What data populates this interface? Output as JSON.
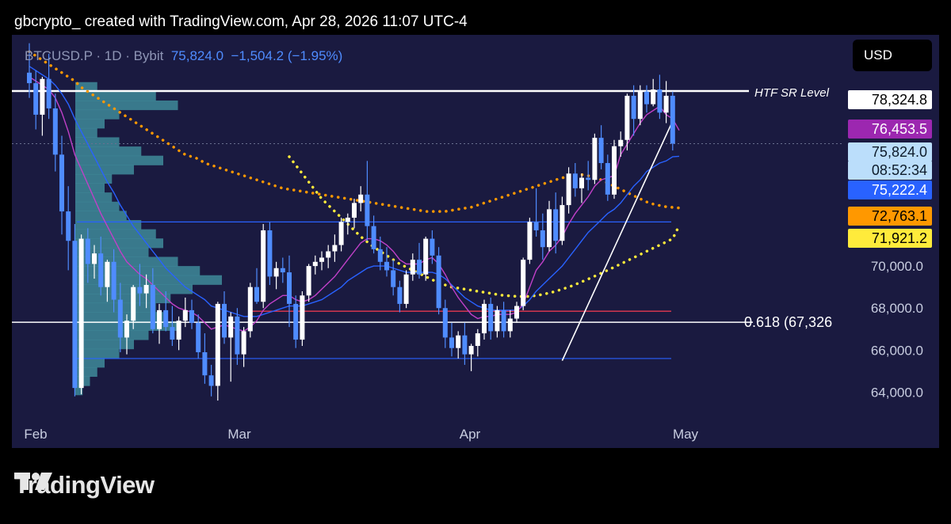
{
  "header": "gbcrypto_ created with TradingView.com, Apr 28, 2026 11:07 UTC-4",
  "symbol": {
    "ticker": "BTCUSD.P · 1D · Bybit",
    "last": "75,824.0",
    "change": "−1,504.2 (−1.95%)"
  },
  "currency": "USD",
  "brand": "TradingView",
  "annotations": {
    "htf": "HTF SR Level",
    "fib": "0.618 (67,326"
  },
  "price_tags": [
    {
      "label": "78,324.8",
      "bg": "#ffffff",
      "fg": "#000000"
    },
    {
      "label": "76,453.5",
      "bg": "#9c27b0",
      "fg": "#ffffff"
    },
    {
      "label": "75,824.0",
      "bg": "#bbdefb",
      "fg": "#0d1b2a"
    },
    {
      "label": "08:52:34",
      "bg": "#bbdefb",
      "fg": "#0d1b2a"
    },
    {
      "label": "75,222.4",
      "bg": "#2962ff",
      "fg": "#ffffff"
    },
    {
      "label": "72,763.1",
      "bg": "#ff9800",
      "fg": "#000000"
    },
    {
      "label": "71,921.2",
      "bg": "#ffeb3b",
      "fg": "#000000"
    }
  ],
  "chart_data": {
    "type": "candlestick",
    "x_labels": [
      "Feb",
      "Mar",
      "Apr",
      "May"
    ],
    "y_ticks": [
      "70,000.0",
      "68,000.0",
      "66,000.0",
      "64,000.0"
    ],
    "ylim": [
      63000,
      81000
    ],
    "colors": {
      "up": "#ffffff",
      "down": "#4f8cff"
    },
    "candles": [
      [
        79200,
        80600,
        78000,
        78700
      ],
      [
        78700,
        79300,
        76500,
        77200
      ],
      [
        77200,
        79000,
        76200,
        78900
      ],
      [
        78900,
        80100,
        77000,
        77500
      ],
      [
        77500,
        78200,
        74500,
        75300
      ],
      [
        75300,
        76200,
        71500,
        72600
      ],
      [
        72600,
        73800,
        69800,
        71200
      ],
      [
        71200,
        72000,
        63800,
        64200
      ],
      [
        64200,
        71500,
        63900,
        71300
      ],
      [
        71300,
        71800,
        69200,
        70100
      ],
      [
        70100,
        71000,
        69400,
        70600
      ],
      [
        70600,
        71400,
        68600,
        69000
      ],
      [
        69000,
        70300,
        68300,
        70200
      ],
      [
        70200,
        70800,
        67800,
        68400
      ],
      [
        68400,
        69200,
        65900,
        66600
      ],
      [
        66600,
        67700,
        65800,
        67400
      ],
      [
        67400,
        69100,
        67000,
        69000
      ],
      [
        69000,
        70100,
        68100,
        68700
      ],
      [
        68700,
        69600,
        68000,
        69100
      ],
      [
        69100,
        69900,
        66800,
        67000
      ],
      [
        67000,
        68200,
        66300,
        67900
      ],
      [
        67900,
        68800,
        66900,
        67100
      ],
      [
        67100,
        68100,
        66200,
        66500
      ],
      [
        66500,
        67600,
        66000,
        67400
      ],
      [
        67400,
        68500,
        67100,
        67900
      ],
      [
        67900,
        68400,
        67000,
        67300
      ],
      [
        67300,
        67700,
        65600,
        65900
      ],
      [
        65900,
        66800,
        64400,
        64800
      ],
      [
        64800,
        65300,
        63800,
        64300
      ],
      [
        64300,
        68300,
        63600,
        68200
      ],
      [
        68200,
        68800,
        66300,
        66600
      ],
      [
        66600,
        67800,
        64500,
        67600
      ],
      [
        67600,
        68000,
        65300,
        65800
      ],
      [
        65800,
        67100,
        65200,
        66900
      ],
      [
        66900,
        69200,
        66600,
        69000
      ],
      [
        69000,
        69900,
        68200,
        68300
      ],
      [
        68300,
        72000,
        68000,
        71700
      ],
      [
        71700,
        72100,
        69100,
        69500
      ],
      [
        69500,
        70200,
        68900,
        69900
      ],
      [
        69900,
        70400,
        69200,
        69700
      ],
      [
        69700,
        70500,
        67100,
        68200
      ],
      [
        68200,
        68600,
        66100,
        66500
      ],
      [
        66500,
        68800,
        66200,
        68600
      ],
      [
        68600,
        70100,
        68300,
        70000
      ],
      [
        70000,
        70500,
        69600,
        70200
      ],
      [
        70200,
        70700,
        69800,
        70400
      ],
      [
        70400,
        71000,
        69900,
        70700
      ],
      [
        70700,
        71500,
        70200,
        71000
      ],
      [
        71000,
        72300,
        70700,
        72100
      ],
      [
        72100,
        72500,
        71500,
        72300
      ],
      [
        72300,
        73200,
        71800,
        73000
      ],
      [
        73000,
        73800,
        72600,
        73400
      ],
      [
        73400,
        75000,
        71200,
        71900
      ],
      [
        71900,
        72400,
        70600,
        70800
      ],
      [
        70800,
        71400,
        69800,
        70200
      ],
      [
        70200,
        70900,
        69500,
        69800
      ],
      [
        69800,
        70300,
        68600,
        69000
      ],
      [
        69000,
        69300,
        67800,
        68200
      ],
      [
        68200,
        69800,
        68000,
        69600
      ],
      [
        69600,
        70600,
        69300,
        70300
      ],
      [
        70300,
        71100,
        69400,
        69600
      ],
      [
        69600,
        71400,
        69300,
        71300
      ],
      [
        71300,
        71700,
        70100,
        70500
      ],
      [
        70500,
        70900,
        67700,
        68000
      ],
      [
        68000,
        68400,
        66100,
        66600
      ],
      [
        66600,
        67300,
        65700,
        66100
      ],
      [
        66100,
        66900,
        65600,
        66700
      ],
      [
        66700,
        67300,
        65300,
        65800
      ],
      [
        65800,
        66300,
        65000,
        66200
      ],
      [
        66200,
        67000,
        65700,
        66800
      ],
      [
        66800,
        68400,
        66500,
        68200
      ],
      [
        68200,
        68500,
        66500,
        66900
      ],
      [
        66900,
        68100,
        66600,
        67900
      ],
      [
        67900,
        68300,
        66600,
        66900
      ],
      [
        66900,
        67900,
        66600,
        67500
      ],
      [
        67500,
        68300,
        67300,
        68100
      ],
      [
        68100,
        70400,
        67900,
        70300
      ],
      [
        70300,
        72300,
        70100,
        72100
      ],
      [
        72100,
        73700,
        71400,
        71700
      ],
      [
        71700,
        72500,
        70300,
        70900
      ],
      [
        70900,
        73100,
        70700,
        72700
      ],
      [
        72700,
        73500,
        70600,
        71200
      ],
      [
        71200,
        73300,
        71000,
        72900
      ],
      [
        72900,
        74700,
        72500,
        74400
      ],
      [
        74400,
        74900,
        73300,
        73700
      ],
      [
        73700,
        74400,
        73000,
        74200
      ],
      [
        74200,
        75000,
        73600,
        74100
      ],
      [
        74100,
        76300,
        73900,
        76100
      ],
      [
        76100,
        76700,
        74600,
        74900
      ],
      [
        74900,
        75300,
        73100,
        73400
      ],
      [
        73400,
        76000,
        73200,
        75700
      ],
      [
        75700,
        76400,
        75200,
        76000
      ],
      [
        76000,
        78200,
        75500,
        78100
      ],
      [
        78100,
        78600,
        76200,
        77000
      ],
      [
        77000,
        78600,
        76700,
        78300
      ],
      [
        78300,
        78600,
        77300,
        77700
      ],
      [
        77700,
        78900,
        77600,
        78400
      ],
      [
        78400,
        79100,
        77000,
        77300
      ],
      [
        77300,
        78800,
        76800,
        78100
      ],
      [
        78100,
        78300,
        75500,
        75824
      ]
    ],
    "levels": [
      {
        "label": "HTF SR Level",
        "value": 78324.8,
        "color": "#ffffff"
      },
      {
        "label": "0.618",
        "value": 67326,
        "color": "#ffffff"
      },
      {
        "value": 72100,
        "color": "#2962ff"
      },
      {
        "value": 65600,
        "color": "#2962ff"
      },
      {
        "value": 67850,
        "color": "#e53950"
      }
    ],
    "trendline": {
      "from": [
        82,
        65500
      ],
      "to": [
        99,
        76900
      ],
      "color": "#ffffff"
    },
    "ema_fast": [
      79000,
      78800,
      78600,
      78400,
      78000,
      77300,
      76400,
      75300,
      74600,
      73900,
      73200,
      72500,
      71900,
      71300,
      70700,
      70200,
      69900,
      69600,
      69400,
      69100,
      68800,
      68500,
      68200,
      68000,
      67900,
      67800,
      67600,
      67300,
      67000,
      67100,
      67200,
      67100,
      67000,
      66900,
      67100,
      67400,
      67900,
      68200,
      68400,
      68600,
      68600,
      68400,
      68300,
      68400,
      68600,
      68900,
      69200,
      69500,
      69900,
      70300,
      70700,
      71100,
      71300,
      71300,
      71200,
      71000,
      70700,
      70300,
      70100,
      70100,
      70100,
      70300,
      70400,
      70100,
      69600,
      69000,
      68500,
      68100,
      67700,
      67500,
      67600,
      67600,
      67700,
      67700,
      67700,
      67800,
      68200,
      69000,
      69800,
      70200,
      70700,
      71000,
      71400,
      72000,
      72500,
      72900,
      73300,
      73800,
      74100,
      74200,
      74300,
      75300,
      75800,
      76300,
      76800,
      77200,
      77400,
      77600,
      77200,
      77000,
      76453
    ],
    "ema_slow": [
      79500,
      79300,
      79100,
      78900,
      78600,
      78200,
      77700,
      77000,
      76400,
      75800,
      75200,
      74600,
      74000,
      73500,
      72900,
      72400,
      71900,
      71500,
      71100,
      70700,
      70300,
      69900,
      69600,
      69300,
      69000,
      68800,
      68600,
      68400,
      68100,
      68000,
      67900,
      67800,
      67700,
      67600,
      67600,
      67600,
      67700,
      67800,
      67900,
      68000,
      68100,
      68100,
      68100,
      68200,
      68300,
      68400,
      68600,
      68800,
      69000,
      69300,
      69500,
      69700,
      69900,
      70000,
      70000,
      70000,
      69900,
      69800,
      69700,
      69700,
      69700,
      69700,
      69700,
      69600,
      69400,
      69100,
      68800,
      68500,
      68300,
      68100,
      68000,
      67900,
      67900,
      67900,
      67900,
      67900,
      68100,
      68400,
      68800,
      69100,
      69400,
      69700,
      70000,
      70400,
      70800,
      71200,
      71600,
      71900,
      72200,
      72500,
      72700,
      73000,
      73400,
      73800,
      74100,
      74500,
      74700,
      74900,
      75000,
      75200,
      75222
    ],
    "ma_orange": {
      "from": 0,
      "values": [
        80200,
        80000,
        79800,
        79600,
        79400,
        79200,
        79000,
        78800,
        78500,
        78300,
        78100,
        77900,
        77700,
        77500,
        77300,
        77100,
        76900,
        76700,
        76500,
        76300,
        76100,
        75900,
        75700,
        75500,
        75300,
        75200,
        75100,
        74900,
        74800,
        74700,
        74600,
        74500,
        74400,
        74300,
        74200,
        74100,
        74000,
        73900,
        73800,
        73700,
        73650,
        73600,
        73550,
        73500,
        73450,
        73400,
        73350,
        73300,
        73250,
        73200,
        73150,
        73100,
        73050,
        73000,
        72950,
        72900,
        72850,
        72800,
        72750,
        72700,
        72650,
        72600,
        72600,
        72600,
        72600,
        72650,
        72700,
        72750,
        72800,
        72900,
        73000,
        73100,
        73200,
        73300,
        73400,
        73500,
        73600,
        73700,
        73800,
        73900,
        74000,
        74100,
        74200,
        74250,
        74300,
        74350,
        74300,
        74200,
        74100,
        73950,
        73800,
        73650,
        73500,
        73350,
        73200,
        73050,
        72950,
        72880,
        72820,
        72790,
        72763
      ]
    },
    "ma_yellow": {
      "from": 40,
      "values": [
        75200,
        74800,
        74400,
        74000,
        73600,
        73200,
        72900,
        72600,
        72300,
        72000,
        71700,
        71400,
        71150,
        70900,
        70700,
        70500,
        70300,
        70100,
        69950,
        69800,
        69650,
        69500,
        69350,
        69200,
        69100,
        69000,
        68950,
        68900,
        68850,
        68800,
        68750,
        68700,
        68650,
        68600,
        68580,
        68560,
        68550,
        68560,
        68600,
        68650,
        68720,
        68800,
        68900,
        69000,
        69120,
        69250,
        69380,
        69520,
        69660,
        69800,
        69950,
        70100,
        70250,
        70400,
        70550,
        70700,
        70850,
        71000,
        71150,
        71300,
        71921
      ]
    },
    "volume_profile": [
      0,
      0,
      0,
      0,
      0.15,
      0.55,
      0.7,
      0.3,
      0.2,
      0.15,
      0.3,
      0.45,
      0.6,
      0.4,
      0.25,
      0.2,
      0.25,
      0.3,
      0.35,
      0.45,
      0.55,
      0.6,
      0.5,
      0.7,
      0.85,
      1,
      0.8,
      0.65,
      0.55,
      0.6,
      0.7,
      0.5,
      0.4,
      0.3,
      0.2,
      0.15,
      0.1,
      0.05,
      0,
      0
    ]
  }
}
